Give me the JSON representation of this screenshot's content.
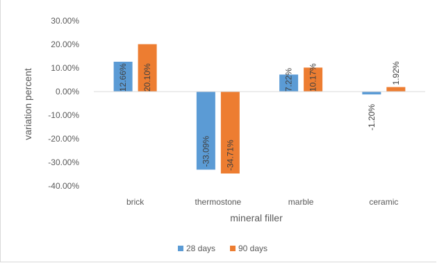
{
  "chart_data": {
    "type": "bar",
    "categories": [
      "brick",
      "thermostone",
      "marble",
      "ceramic"
    ],
    "series": [
      {
        "name": "28 days",
        "color": "#5b9bd5",
        "values": [
          12.66,
          -33.09,
          7.22,
          -1.2
        ],
        "labels": [
          "12.66%",
          "-33.09%",
          "7.22%",
          "-1.20%"
        ]
      },
      {
        "name": "90 days",
        "color": "#ed7d31",
        "values": [
          20.1,
          -34.71,
          10.17,
          1.92
        ],
        "labels": [
          "20.10%",
          "-34.71%",
          "10.17%",
          "1.92%"
        ]
      }
    ],
    "ylim": [
      -40,
      30
    ],
    "yticks": [
      30,
      20,
      10,
      0,
      -10,
      -20,
      -30,
      -40
    ],
    "ytick_labels": [
      "30.00%",
      "20.00%",
      "10.00%",
      "0.00%",
      "-10.00%",
      "-20.00%",
      "-30.00%",
      "-40.00%"
    ],
    "xlabel": "mineral filler",
    "ylabel": "variation percent",
    "grid": false,
    "legend_position": "bottom"
  }
}
